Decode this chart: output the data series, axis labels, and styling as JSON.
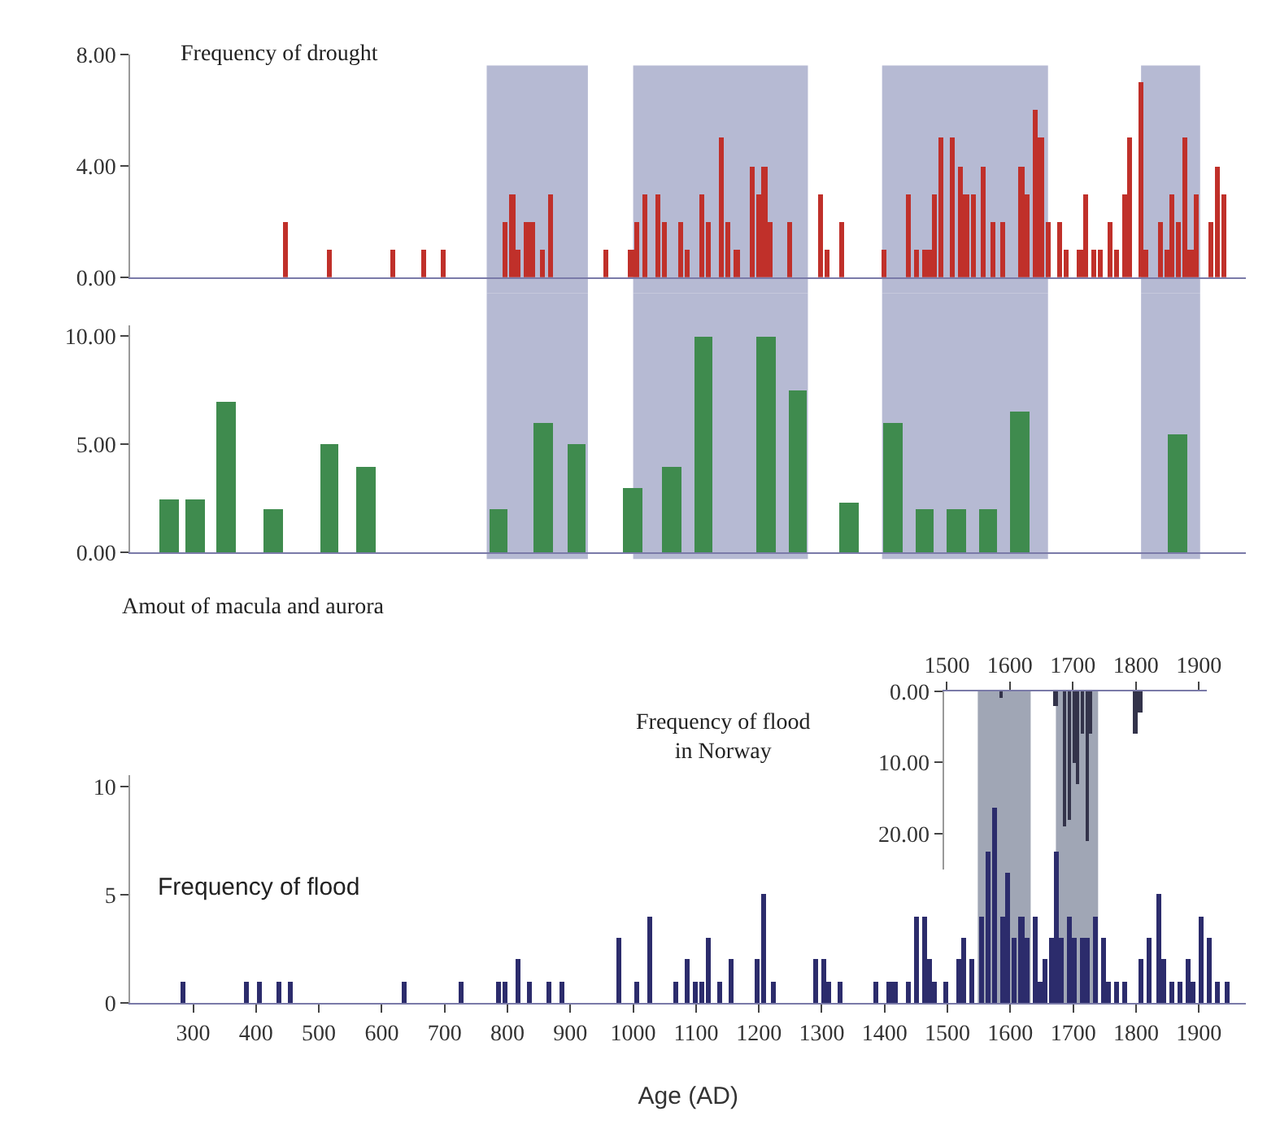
{
  "chart_data": [
    {
      "type": "bar",
      "title": "Frequency of drought",
      "x": [
        446,
        517,
        617,
        668,
        698,
        797,
        808,
        816,
        829,
        839,
        857,
        869,
        957,
        997,
        1007,
        1018,
        1039,
        1049,
        1077,
        1087,
        1110,
        1119,
        1140,
        1150,
        1165,
        1190,
        1200,
        1209,
        1219,
        1249,
        1299,
        1309,
        1333,
        1400,
        1438,
        1450,
        1463,
        1471,
        1480,
        1490,
        1509,
        1522,
        1530,
        1541,
        1558,
        1572,
        1589,
        1618,
        1628,
        1639,
        1649,
        1660,
        1679,
        1690,
        1711,
        1719,
        1732,
        1744,
        1759,
        1769,
        1782,
        1790,
        1807,
        1817,
        1838,
        1849,
        1857,
        1868,
        1877,
        1887,
        1897,
        1919,
        1929,
        1940
      ],
      "series": [
        {
          "color": "#c0302a",
          "values": [
            2,
            1,
            1,
            1,
            1,
            2,
            3,
            1,
            2,
            2,
            1,
            3,
            1,
            1,
            2,
            3,
            3,
            2,
            2,
            1,
            3,
            2,
            5,
            2,
            1,
            4,
            3,
            4,
            2,
            2,
            3,
            1,
            2,
            1,
            3,
            1,
            1,
            1,
            3,
            5,
            5,
            4,
            3,
            3,
            4,
            2,
            2,
            4,
            3,
            6,
            5,
            2,
            2,
            1,
            1,
            3,
            1,
            1,
            2,
            1,
            3,
            5,
            7,
            1,
            2,
            1,
            3,
            2,
            5,
            1,
            3,
            2,
            4,
            3
          ]
        }
      ],
      "xlim": [
        200,
        1975
      ],
      "ylim": [
        0,
        8
      ],
      "yticks": [
        {
          "value": 0,
          "label": "0.00"
        },
        {
          "value": 4,
          "label": "4.00"
        },
        {
          "value": 8,
          "label": "8.00"
        }
      ],
      "tick_labels": "y",
      "bands": [
        {
          "axis": "x",
          "from": 767,
          "to": 928,
          "color": "#a9aecb"
        },
        {
          "axis": "x",
          "from": 1000,
          "to": 1278,
          "color": "#a9aecb"
        },
        {
          "axis": "x",
          "from": 1396,
          "to": 1660,
          "color": "#a9aecb"
        },
        {
          "axis": "x",
          "from": 1808,
          "to": 1902,
          "color": "#a9aecb"
        }
      ]
    },
    {
      "type": "bar",
      "title": "Amout of macula and aurora",
      "x": [
        262,
        303,
        353,
        428,
        517,
        575,
        786,
        857,
        910,
        1000,
        1061,
        1112,
        1212,
        1262,
        1343,
        1413,
        1464,
        1514,
        1565,
        1615,
        1867
      ],
      "series": [
        {
          "color": "#3f8b4e",
          "values": [
            2.5,
            2.5,
            7,
            2,
            5,
            4,
            2,
            6,
            5,
            3,
            4,
            10,
            10,
            7.5,
            2.3,
            6,
            2,
            2,
            2,
            6.5,
            5.5
          ]
        }
      ],
      "xlim": [
        200,
        1975
      ],
      "ylim": [
        0,
        10.5
      ],
      "yticks": [
        {
          "value": 0,
          "label": "0.00"
        },
        {
          "value": 5,
          "label": "5.00"
        },
        {
          "value": 10,
          "label": "10.00"
        }
      ],
      "tick_labels": "y",
      "bands": [
        {
          "axis": "x",
          "from": 767,
          "to": 928,
          "color": "#a9aecb"
        },
        {
          "axis": "x",
          "from": 1000,
          "to": 1278,
          "color": "#a9aecb"
        },
        {
          "axis": "x",
          "from": 1396,
          "to": 1660,
          "color": "#a9aecb"
        },
        {
          "axis": "x",
          "from": 1808,
          "to": 1902,
          "color": "#a9aecb"
        }
      ]
    },
    {
      "type": "bar",
      "title": "Frequency of flood",
      "xlabel": "Age (AD)",
      "x": [
        285,
        386,
        406,
        436,
        456,
        637,
        726,
        787,
        796,
        816,
        836,
        867,
        887,
        977,
        1007,
        1026,
        1067,
        1087,
        1100,
        1110,
        1119,
        1137,
        1157,
        1198,
        1208,
        1224,
        1291,
        1303,
        1312,
        1329,
        1387,
        1408,
        1416,
        1439,
        1450,
        1463,
        1471,
        1480,
        1498,
        1518,
        1526,
        1539,
        1555,
        1564,
        1576,
        1589,
        1597,
        1606,
        1618,
        1627,
        1639,
        1648,
        1656,
        1665,
        1673,
        1681,
        1694,
        1702,
        1715,
        1723,
        1736,
        1749,
        1757,
        1770,
        1782,
        1807,
        1820,
        1837,
        1845,
        1858,
        1870,
        1883,
        1891,
        1904,
        1917,
        1929,
        1946
      ],
      "series": [
        {
          "color": "#2c2c6c",
          "values": [
            1,
            1,
            1,
            1,
            1,
            1,
            1,
            1,
            1,
            2,
            1,
            1,
            1,
            3,
            1,
            4,
            1,
            2,
            1,
            1,
            3,
            1,
            2,
            2,
            5,
            1,
            2,
            2,
            1,
            1,
            1,
            1,
            1,
            1,
            4,
            4,
            2,
            1,
            1,
            2,
            3,
            2,
            4,
            7,
            9,
            4,
            6,
            3,
            4,
            3,
            4,
            1,
            2,
            3,
            7,
            3,
            4,
            3,
            3,
            3,
            4,
            3,
            1,
            1,
            1,
            2,
            3,
            5,
            2,
            1,
            1,
            2,
            1,
            4,
            3,
            1,
            1
          ]
        }
      ],
      "xlim": [
        200,
        1975
      ],
      "ylim": [
        0,
        10.5
      ],
      "xticks": [
        300,
        400,
        500,
        600,
        700,
        800,
        900,
        1000,
        1100,
        1200,
        1300,
        1400,
        1500,
        1600,
        1700,
        1800,
        1900
      ],
      "yticks": [
        0,
        5,
        10
      ]
    },
    {
      "type": "bar",
      "title": "Frequency of flood\nin Norway",
      "x": [
        1586,
        1673,
        1686,
        1694,
        1702,
        1707,
        1715,
        1723,
        1728,
        1799,
        1807
      ],
      "series": [
        {
          "color": "#33334a",
          "values": [
            1,
            2,
            19,
            18,
            10,
            13,
            6,
            21,
            6,
            6,
            3
          ]
        }
      ],
      "xlim": [
        1495,
        1912
      ],
      "ylim": [
        25,
        0
      ],
      "xticks": [
        1500,
        1600,
        1700,
        1800,
        1900
      ],
      "yticks": [
        {
          "value": 0,
          "label": "0.00"
        },
        {
          "value": 10,
          "label": "10.00"
        },
        {
          "value": 20,
          "label": "20.00"
        }
      ],
      "bands": [
        {
          "axis": "x",
          "from": 1549,
          "to": 1633,
          "color": "#8f96a8"
        },
        {
          "axis": "x",
          "from": 1673,
          "to": 1740,
          "color": "#8f96a8"
        }
      ]
    }
  ]
}
